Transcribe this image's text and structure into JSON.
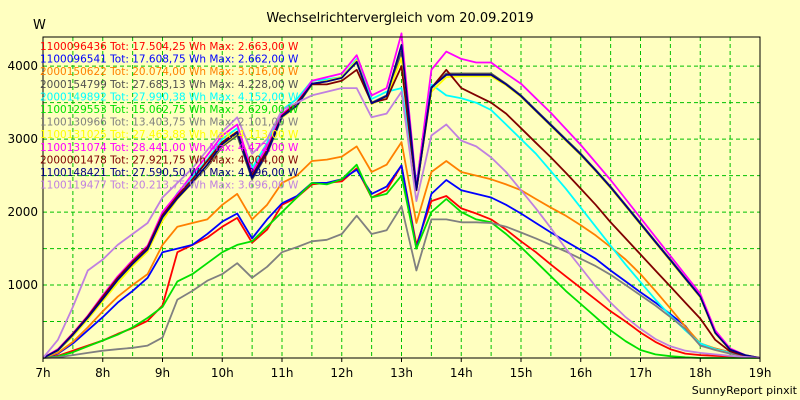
{
  "chart_data": {
    "type": "line",
    "title": "Wechselrichtervergleich vom 20.09.2019",
    "ylabel": "W",
    "xlabel": "",
    "footer": "SunnyReport pinxit",
    "grid": true,
    "legend_position": "top-left",
    "ylim": [
      0,
      4400
    ],
    "xlim": [
      7,
      19
    ],
    "y_ticks": [
      1000,
      2000,
      3000,
      4000
    ],
    "x_ticks": [
      7,
      8,
      9,
      10,
      11,
      12,
      13,
      14,
      15,
      16,
      17,
      18,
      19
    ],
    "x_tick_labels": [
      "7h",
      "8h",
      "9h",
      "10h",
      "11h",
      "12h",
      "13h",
      "14h",
      "15h",
      "16h",
      "17h",
      "18h",
      "19h"
    ],
    "x": [
      7.0,
      7.25,
      7.5,
      7.75,
      8.0,
      8.25,
      8.5,
      8.75,
      9.0,
      9.25,
      9.5,
      9.75,
      10.0,
      10.25,
      10.5,
      10.75,
      11.0,
      11.25,
      11.5,
      11.75,
      12.0,
      12.25,
      12.5,
      12.75,
      13.0,
      13.25,
      13.5,
      13.75,
      14.0,
      14.25,
      14.5,
      14.75,
      15.0,
      15.25,
      15.5,
      15.75,
      16.0,
      16.25,
      16.5,
      16.75,
      17.0,
      17.25,
      17.5,
      17.75,
      18.0,
      18.25,
      18.5,
      18.75,
      19.0
    ],
    "series": [
      {
        "name": "1100096436 Tot: 17.504,25 Wh Max: 2.663,00 W",
        "color": "#ff0000",
        "values": [
          0,
          30,
          100,
          170,
          240,
          330,
          410,
          510,
          720,
          1450,
          1550,
          1650,
          1800,
          1920,
          1580,
          1760,
          2100,
          2200,
          2380,
          2400,
          2420,
          2600,
          2200,
          2300,
          2640,
          1550,
          2150,
          2220,
          2050,
          1980,
          1900,
          1760,
          1600,
          1450,
          1280,
          1120,
          960,
          800,
          640,
          500,
          350,
          220,
          120,
          60,
          40,
          30,
          20,
          10,
          0
        ]
      },
      {
        "name": "1100096541 Tot: 17.608,75 Wh Max: 2.662,00 W",
        "color": "#0000ff",
        "values": [
          0,
          60,
          200,
          380,
          560,
          760,
          920,
          1100,
          1450,
          1500,
          1550,
          1700,
          1870,
          1980,
          1640,
          1900,
          2120,
          2220,
          2400,
          2400,
          2450,
          2580,
          2250,
          2350,
          2640,
          1500,
          2250,
          2440,
          2300,
          2250,
          2200,
          2100,
          1980,
          1850,
          1720,
          1600,
          1480,
          1360,
          1200,
          1050,
          900,
          760,
          600,
          440,
          170,
          130,
          80,
          30,
          0
        ]
      },
      {
        "name": "2000150622 Tot: 20.074,00 Wh Max: 3.016,00 W",
        "color": "#ff8000",
        "values": [
          0,
          70,
          220,
          420,
          640,
          840,
          1000,
          1150,
          1550,
          1800,
          1850,
          1900,
          2100,
          2250,
          1900,
          2100,
          2400,
          2500,
          2700,
          2720,
          2760,
          2900,
          2550,
          2650,
          2960,
          1850,
          2550,
          2700,
          2550,
          2500,
          2450,
          2380,
          2300,
          2180,
          2060,
          1950,
          1820,
          1680,
          1520,
          1350,
          1150,
          920,
          680,
          430,
          200,
          130,
          80,
          30,
          0
        ]
      },
      {
        "name": "2000154799 Tot: 27.683,13 Wh Max: 4.228,00 W",
        "color": "#505050",
        "values": [
          0,
          110,
          320,
          560,
          820,
          1080,
          1300,
          1500,
          1940,
          2200,
          2400,
          2620,
          2900,
          3050,
          2450,
          2800,
          3300,
          3450,
          3750,
          3800,
          3850,
          4050,
          3500,
          3600,
          4200,
          2300,
          3700,
          3900,
          3900,
          3900,
          3900,
          3760,
          3600,
          3400,
          3200,
          3000,
          2800,
          2580,
          2350,
          2100,
          1850,
          1600,
          1350,
          1100,
          850,
          350,
          120,
          40,
          0
        ]
      },
      {
        "name": "2000149892 Tot: 27.990,38 Wh Max: 4.152,00 W",
        "color": "#00ffff",
        "values": [
          0,
          100,
          300,
          540,
          800,
          1060,
          1280,
          1480,
          1920,
          2260,
          2480,
          2720,
          3000,
          3150,
          2600,
          2950,
          3400,
          3550,
          3800,
          3820,
          3850,
          4100,
          3550,
          3650,
          3700,
          2400,
          3750,
          3600,
          3560,
          3500,
          3400,
          3200,
          3000,
          2800,
          2560,
          2320,
          2060,
          1800,
          1540,
          1280,
          1040,
          800,
          580,
          380,
          200,
          120,
          70,
          30,
          0
        ]
      },
      {
        "name": "1100129553 Tot: 15.062,75 Wh Max: 2.629,00 W",
        "color": "#00e000",
        "values": [
          0,
          20,
          80,
          160,
          240,
          320,
          420,
          550,
          700,
          1050,
          1150,
          1300,
          1450,
          1550,
          1600,
          1800,
          2000,
          2200,
          2400,
          2380,
          2450,
          2650,
          2200,
          2250,
          2500,
          1500,
          2000,
          2180,
          2000,
          1900,
          1860,
          1700,
          1520,
          1320,
          1120,
          920,
          740,
          560,
          380,
          230,
          110,
          50,
          25,
          10,
          0,
          0,
          0,
          0,
          0
        ]
      },
      {
        "name": "1100130966 Tot: 13.403,75 Wh Max: 2.101,00 W",
        "color": "#808080",
        "values": [
          0,
          10,
          40,
          70,
          100,
          120,
          140,
          170,
          280,
          800,
          920,
          1060,
          1150,
          1300,
          1100,
          1250,
          1450,
          1520,
          1600,
          1620,
          1700,
          1950,
          1700,
          1750,
          2080,
          1200,
          1900,
          1900,
          1860,
          1860,
          1850,
          1800,
          1720,
          1640,
          1550,
          1460,
          1360,
          1260,
          1140,
          1000,
          860,
          720,
          560,
          400,
          170,
          110,
          60,
          30,
          0
        ]
      },
      {
        "name": "1100131025 Tot: 27.463,88 Wh Max: 4.113,00 W",
        "color": "#ffff00",
        "values": [
          0,
          100,
          300,
          530,
          780,
          1030,
          1260,
          1460,
          1880,
          2180,
          2400,
          2640,
          2920,
          3080,
          2500,
          2850,
          3300,
          3450,
          3750,
          3800,
          3850,
          4080,
          3480,
          3580,
          4110,
          2320,
          3650,
          3850,
          3860,
          3860,
          3860,
          3740,
          3580,
          3380,
          3180,
          2980,
          2780,
          2560,
          2330,
          2080,
          1830,
          1580,
          1330,
          1080,
          830,
          340,
          110,
          40,
          0
        ]
      },
      {
        "name": "1100131074 Tot: 28.441,00 Wh Max: 4.472,00 W",
        "color": "#ff00ff",
        "values": [
          0,
          120,
          340,
          580,
          860,
          1120,
          1340,
          1540,
          2000,
          2250,
          2520,
          2780,
          3050,
          3200,
          2550,
          2900,
          3350,
          3500,
          3800,
          3850,
          3900,
          4150,
          3600,
          3700,
          4450,
          2350,
          3950,
          4200,
          4100,
          4050,
          4050,
          3900,
          3760,
          3560,
          3360,
          3140,
          2920,
          2680,
          2440,
          2180,
          1920,
          1660,
          1400,
          1140,
          880,
          380,
          130,
          40,
          0
        ]
      },
      {
        "name": "2000001478 Tot: 27.921,75 Wh Max: 4.004,00 W",
        "color": "#800000",
        "values": [
          0,
          110,
          330,
          570,
          840,
          1100,
          1320,
          1520,
          1960,
          2220,
          2450,
          2700,
          2960,
          3100,
          2500,
          2850,
          3320,
          3500,
          3750,
          3750,
          3800,
          3950,
          3500,
          3550,
          4000,
          2300,
          3700,
          3950,
          3700,
          3600,
          3500,
          3350,
          3150,
          2950,
          2750,
          2540,
          2320,
          2100,
          1860,
          1640,
          1420,
          1200,
          980,
          760,
          540,
          250,
          90,
          30,
          0
        ]
      },
      {
        "name": "1100148421 Tot: 27.590,50 Wh Max: 4.296,00 W",
        "color": "#000080",
        "values": [
          0,
          105,
          320,
          555,
          810,
          1070,
          1290,
          1490,
          1930,
          2190,
          2410,
          2650,
          2930,
          3090,
          2470,
          2820,
          3310,
          3460,
          3760,
          3790,
          3840,
          4060,
          3490,
          3590,
          4290,
          2310,
          3710,
          3880,
          3880,
          3880,
          3880,
          3750,
          3590,
          3390,
          3190,
          2990,
          2790,
          2570,
          2340,
          2090,
          1840,
          1590,
          1340,
          1090,
          840,
          345,
          115,
          40,
          0
        ]
      },
      {
        "name": "1100119477 Tot: 20.213,75 Wh Max: 3.696,00 W",
        "color": "#c080e0",
        "values": [
          0,
          250,
          700,
          1200,
          1350,
          1550,
          1700,
          1850,
          2200,
          2400,
          2600,
          2850,
          3100,
          3300,
          2800,
          3000,
          3400,
          3500,
          3600,
          3650,
          3700,
          3700,
          3300,
          3350,
          3650,
          2150,
          3050,
          3200,
          2980,
          2900,
          2750,
          2550,
          2300,
          2050,
          1780,
          1500,
          1240,
          980,
          760,
          560,
          400,
          260,
          160,
          100,
          70,
          50,
          30,
          15,
          0
        ]
      }
    ]
  }
}
